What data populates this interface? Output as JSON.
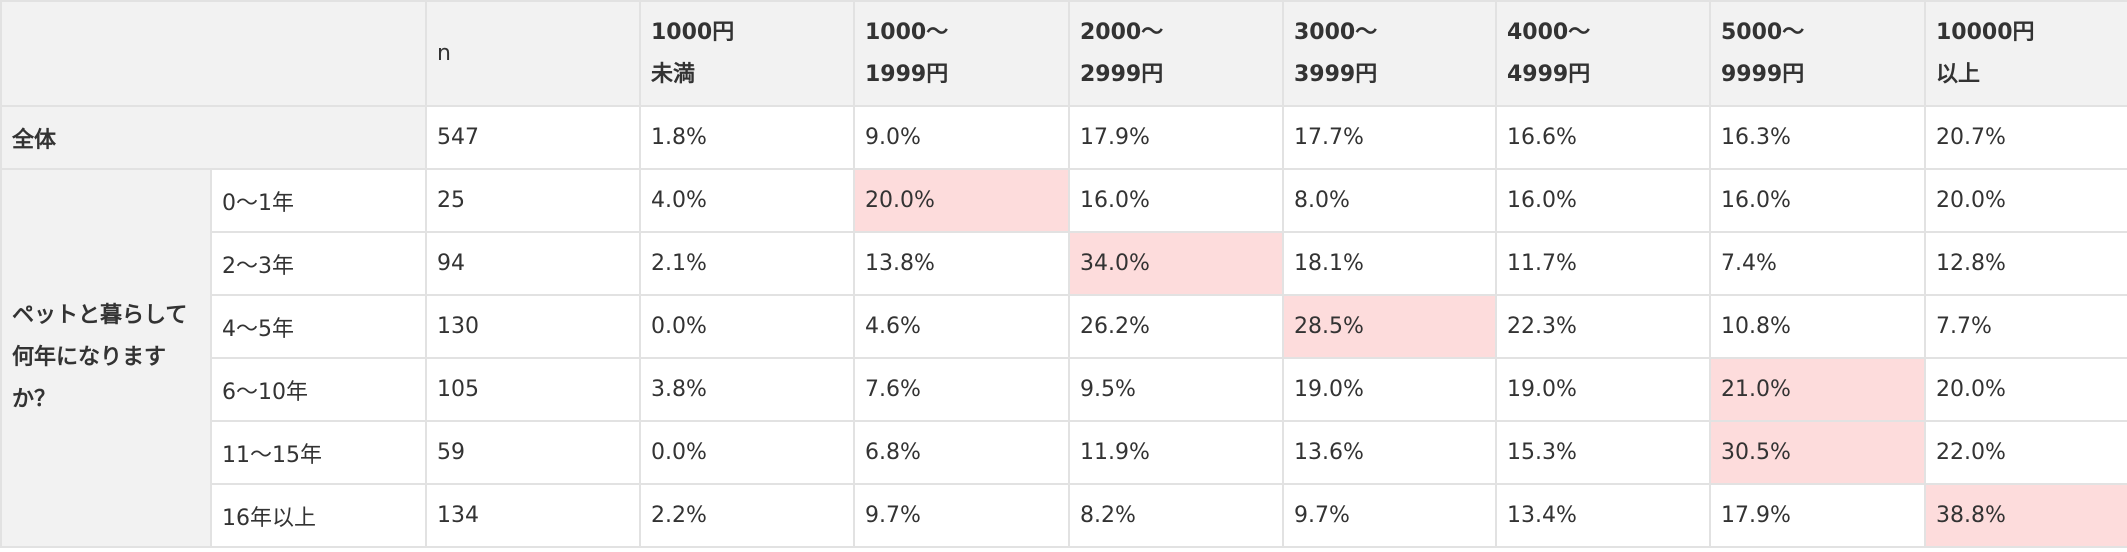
{
  "table": {
    "header": {
      "n": "n",
      "bins": [
        [
          "1000円",
          "未満"
        ],
        [
          "1000〜",
          "1999円"
        ],
        [
          "2000〜",
          "2999円"
        ],
        [
          "3000〜",
          "3999円"
        ],
        [
          "4000〜",
          "4999円"
        ],
        [
          "5000〜",
          "9999円"
        ],
        [
          "10000円",
          "以上"
        ]
      ]
    },
    "total": {
      "label": "全体",
      "n": "547",
      "values": [
        "1.8%",
        "9.0%",
        "17.9%",
        "17.7%",
        "16.6%",
        "16.3%",
        "20.7%"
      ]
    },
    "group": {
      "label": "ペットと暮らして何年になりますか？",
      "rows": [
        {
          "label": "0〜1年",
          "n": "25",
          "values": [
            "4.0%",
            "20.0%",
            "16.0%",
            "8.0%",
            "16.0%",
            "16.0%",
            "20.0%"
          ],
          "highlight": 1
        },
        {
          "label": "2〜3年",
          "n": "94",
          "values": [
            "2.1%",
            "13.8%",
            "34.0%",
            "18.1%",
            "11.7%",
            "7.4%",
            "12.8%"
          ],
          "highlight": 2
        },
        {
          "label": "4〜5年",
          "n": "130",
          "values": [
            "0.0%",
            "4.6%",
            "26.2%",
            "28.5%",
            "22.3%",
            "10.8%",
            "7.7%"
          ],
          "highlight": 3
        },
        {
          "label": "6〜10年",
          "n": "105",
          "values": [
            "3.8%",
            "7.6%",
            "9.5%",
            "19.0%",
            "19.0%",
            "21.0%",
            "20.0%"
          ],
          "highlight": 5
        },
        {
          "label": "11〜15年",
          "n": "59",
          "values": [
            "0.0%",
            "6.8%",
            "11.9%",
            "13.6%",
            "15.3%",
            "30.5%",
            "22.0%"
          ],
          "highlight": 5
        },
        {
          "label": "16年以上",
          "n": "134",
          "values": [
            "2.2%",
            "9.7%",
            "8.2%",
            "9.7%",
            "13.4%",
            "17.9%",
            "38.8%"
          ],
          "highlight": 6
        }
      ]
    }
  }
}
